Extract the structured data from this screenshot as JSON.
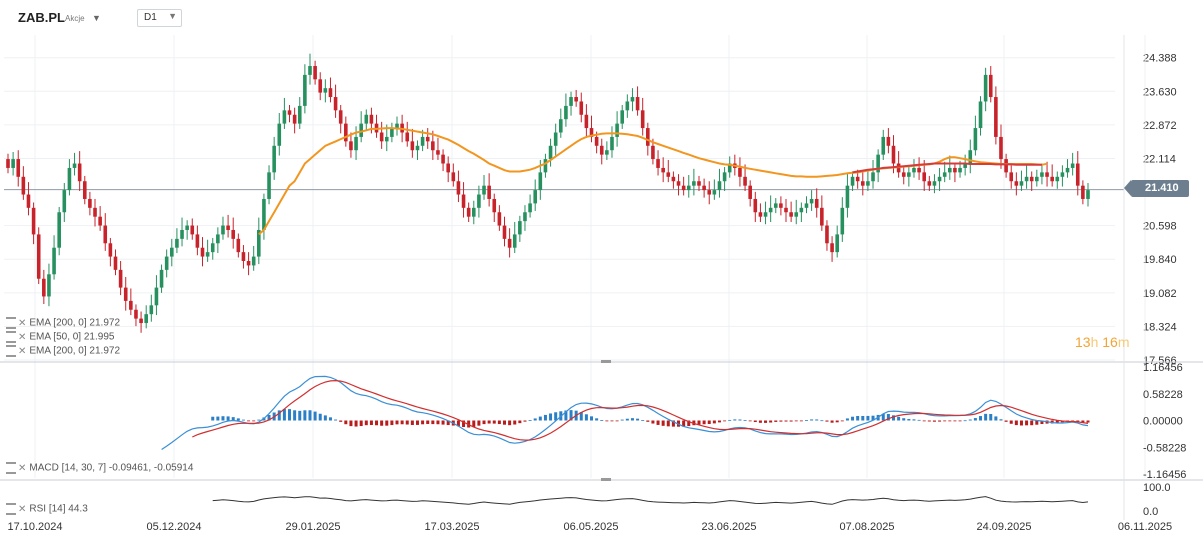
{
  "header": {
    "symbol": "ZAB.PL",
    "type": "Akcje",
    "timeframe": "D1"
  },
  "price_axis": {
    "ticks": [
      "24.388",
      "23.630",
      "22.872",
      "22.114",
      "21.410",
      "20.598",
      "19.840",
      "19.082",
      "18.324",
      "17.566"
    ],
    "last_price": "21.410"
  },
  "macd_axis": {
    "ticks": [
      "1.16456",
      "0.58228",
      "0.00000",
      "-0.58228",
      "-1.16456"
    ]
  },
  "rsi_axis": {
    "ticks": [
      "100.0",
      "0.0"
    ]
  },
  "time_axis": [
    "17.10.2024",
    "05.12.2024",
    "29.01.2025",
    "17.03.2025",
    "06.05.2025",
    "23.06.2025",
    "07.08.2025",
    "24.09.2025",
    "06.11.2025"
  ],
  "indicators": {
    "ema1": "EMA [200, 0] 21.972",
    "ema2": "EMA [50, 0] 21.995",
    "ema3": "EMA [200, 0] 21.972",
    "macd": "MACD [14, 30, 7] -0.09461, -0.05914",
    "rsi": "RSI [14] 44.3"
  },
  "timer": {
    "hours": "13",
    "h_unit": "h",
    "minutes": "16",
    "m_unit": "m"
  },
  "colors": {
    "up": "#26915f",
    "down": "#c8222a",
    "ema50": "#f2961f",
    "ema200": "#d63b3b",
    "macd_line": "#3a8fd6",
    "signal_line": "#d12f2f",
    "hist_pos": "#2b7fc6",
    "hist_neg": "#b81c1c",
    "rsi": "#333333",
    "grid": "#eef1f4"
  },
  "chart_data": {
    "type": "candlestick",
    "close_series": [
      21.9,
      22.1,
      21.7,
      21.3,
      21.0,
      20.4,
      19.4,
      19.0,
      19.5,
      20.1,
      20.9,
      21.4,
      21.9,
      22.0,
      21.6,
      21.2,
      21.0,
      20.8,
      20.6,
      20.2,
      19.9,
      19.6,
      19.2,
      18.9,
      18.7,
      18.5,
      18.4,
      18.6,
      18.8,
      19.2,
      19.6,
      19.9,
      20.1,
      20.3,
      20.5,
      20.6,
      20.4,
      20.1,
      19.9,
      20.0,
      20.2,
      20.4,
      20.6,
      20.5,
      20.3,
      20.0,
      19.8,
      19.7,
      19.9,
      20.5,
      21.2,
      21.8,
      22.4,
      22.9,
      23.2,
      23.1,
      22.9,
      23.3,
      24.0,
      24.2,
      23.9,
      23.6,
      23.7,
      23.5,
      23.2,
      22.9,
      22.5,
      22.3,
      22.6,
      22.9,
      23.1,
      22.9,
      22.7,
      22.5,
      22.6,
      22.8,
      22.9,
      22.7,
      22.5,
      22.3,
      22.4,
      22.6,
      22.5,
      22.3,
      22.2,
      22.0,
      21.8,
      21.6,
      21.3,
      21.0,
      20.8,
      21.0,
      21.3,
      21.5,
      21.2,
      20.9,
      20.6,
      20.3,
      20.1,
      20.4,
      20.7,
      20.9,
      21.1,
      21.4,
      21.8,
      22.1,
      22.4,
      22.7,
      23.0,
      23.3,
      23.5,
      23.4,
      23.1,
      22.8,
      22.6,
      22.4,
      22.2,
      22.3,
      22.6,
      22.9,
      23.2,
      23.4,
      23.5,
      23.2,
      22.8,
      22.4,
      22.1,
      21.9,
      21.8,
      21.7,
      21.6,
      21.5,
      21.4,
      21.5,
      21.6,
      21.5,
      21.4,
      21.3,
      21.4,
      21.6,
      21.8,
      22.0,
      21.9,
      21.7,
      21.5,
      21.2,
      20.9,
      20.8,
      20.9,
      21.0,
      21.1,
      21.0,
      20.9,
      20.8,
      20.9,
      21.0,
      21.1,
      21.2,
      21.0,
      20.6,
      20.2,
      20.0,
      20.4,
      21.0,
      21.5,
      21.7,
      21.6,
      21.5,
      21.6,
      21.8,
      22.2,
      22.6,
      22.4,
      22.0,
      21.8,
      21.7,
      21.8,
      21.9,
      21.8,
      21.6,
      21.5,
      21.6,
      21.7,
      21.8,
      21.9,
      21.8,
      21.9,
      22.0,
      22.3,
      22.8,
      23.4,
      24.0,
      23.5,
      22.6,
      22.1,
      21.8,
      21.6,
      21.5,
      21.6,
      21.7,
      21.6,
      21.7,
      21.8,
      21.7,
      21.6,
      21.7,
      21.8,
      21.9,
      22.0,
      21.5,
      21.2,
      21.4
    ],
    "ema50": [
      null,
      null,
      null,
      null,
      null,
      null,
      null,
      null,
      null,
      null,
      null,
      null,
      null,
      null,
      null,
      null,
      null,
      null,
      null,
      null,
      null,
      null,
      null,
      null,
      null,
      null,
      null,
      null,
      null,
      null,
      null,
      null,
      null,
      null,
      null,
      null,
      null,
      null,
      null,
      null,
      null,
      null,
      null,
      null,
      null,
      null,
      null,
      null,
      null,
      20.4,
      20.5,
      20.7,
      20.9,
      21.1,
      21.3,
      21.5,
      21.6,
      21.8,
      22.0,
      22.1,
      22.2,
      22.3,
      22.4,
      22.45,
      22.5,
      22.55,
      22.6,
      22.65,
      22.7,
      22.72,
      22.75,
      22.78,
      22.78,
      22.79,
      22.8,
      22.8,
      22.79,
      22.78,
      22.76,
      22.74,
      22.72,
      22.7,
      22.68,
      22.66,
      22.62,
      22.58,
      22.54,
      22.48,
      22.42,
      22.35,
      22.28,
      22.22,
      22.15,
      22.08,
      22.0,
      21.95,
      21.9,
      21.85,
      21.82,
      21.82,
      21.82,
      21.84,
      21.86,
      21.9,
      21.95,
      22.0,
      22.08,
      22.16,
      22.24,
      22.32,
      22.4,
      22.48,
      22.55,
      22.6,
      22.63,
      22.65,
      22.67,
      22.68,
      22.68,
      22.68,
      22.67,
      22.66,
      22.64,
      22.62,
      22.58,
      22.53,
      22.48,
      22.44,
      22.4,
      22.36,
      22.32,
      22.28,
      22.24,
      22.2,
      22.16,
      22.12,
      22.09,
      22.06,
      22.03,
      22.0,
      21.98,
      21.97,
      21.95,
      21.93,
      21.9,
      21.88,
      21.86,
      21.84,
      21.82,
      21.8,
      21.78,
      21.76,
      21.74,
      21.72,
      21.71,
      21.71,
      21.7,
      21.7,
      21.7,
      21.71,
      21.72,
      21.73,
      21.74,
      21.76,
      21.78,
      21.79,
      21.8,
      21.82,
      21.84,
      21.86,
      21.88,
      21.89,
      21.9,
      21.91,
      21.92,
      21.93,
      21.94,
      21.95,
      21.96,
      21.97,
      21.98,
      22.0,
      22.04,
      22.1,
      22.14,
      22.14,
      22.12,
      22.1,
      22.07,
      22.05,
      22.03,
      22.02,
      22.01,
      22.0,
      21.99,
      21.99,
      21.99,
      21.99,
      21.99,
      21.99,
      21.99,
      21.98,
      21.97,
      21.995
    ],
    "ema200": [
      null,
      null,
      null,
      null,
      null,
      null,
      null,
      null,
      null,
      null,
      null,
      null,
      null,
      null,
      null,
      null,
      null,
      null,
      null,
      null,
      null,
      null,
      null,
      null,
      null,
      null,
      null,
      null,
      null,
      null,
      null,
      null,
      null,
      null,
      null,
      null,
      null,
      null,
      null,
      null,
      null,
      null,
      null,
      null,
      null,
      null,
      null,
      null,
      null,
      null,
      null,
      null,
      null,
      null,
      null,
      null,
      null,
      null,
      null,
      null,
      null,
      null,
      null,
      null,
      null,
      null,
      null,
      null,
      null,
      null,
      null,
      null,
      null,
      null,
      null,
      null,
      null,
      null,
      null,
      null,
      null,
      null,
      null,
      null,
      null,
      null,
      null,
      null,
      null,
      null,
      null,
      null,
      null,
      null,
      null,
      null,
      null,
      null,
      null,
      null,
      null,
      null,
      null,
      null,
      null,
      null,
      null,
      null,
      null,
      null,
      null,
      null,
      null,
      null,
      null,
      null,
      null,
      null,
      null,
      null,
      null,
      null,
      null,
      null,
      null,
      null,
      null,
      null,
      null,
      null,
      null,
      null,
      null,
      null,
      null,
      null,
      null,
      null,
      null,
      null,
      null,
      null,
      null,
      null,
      null,
      null,
      null,
      null,
      null,
      null,
      null,
      null,
      null,
      null,
      null,
      null,
      null,
      null,
      null,
      null,
      null,
      null,
      null,
      null,
      null,
      21.8,
      21.82,
      21.84,
      21.86,
      21.87,
      21.88,
      21.9,
      21.91,
      21.92,
      21.93,
      21.94,
      21.95,
      21.96,
      21.97,
      21.98,
      21.99,
      22.0,
      22.0,
      22.0,
      22.0,
      22.0,
      22.0,
      22.0,
      21.99,
      21.99,
      21.99,
      21.99,
      21.99,
      21.98,
      21.98,
      21.98,
      21.98,
      21.97,
      21.97,
      21.97,
      21.97,
      21.97,
      21.972
    ],
    "macd_range": [
      -1.16456,
      1.16456
    ],
    "rsi_range": [
      0,
      100
    ],
    "ylim": [
      17.566,
      24.9
    ]
  }
}
